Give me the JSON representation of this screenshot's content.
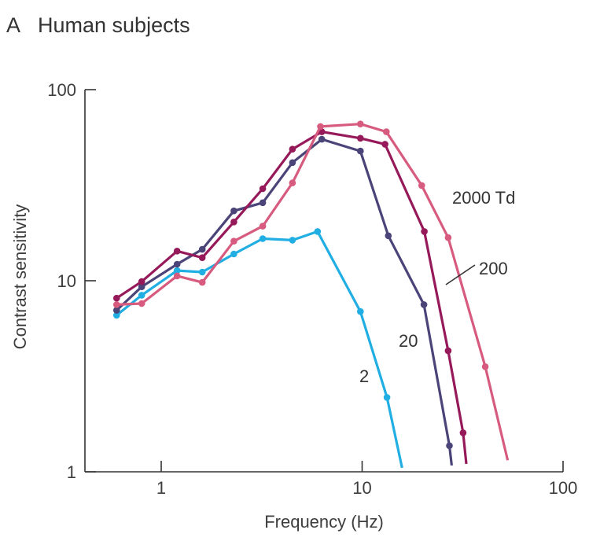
{
  "panel": {
    "letter": "A",
    "title": "Human subjects"
  },
  "chart_data": {
    "type": "line",
    "xlabel": "Frequency (Hz)",
    "ylabel": "Contrast sensitivity",
    "xscale": "log",
    "yscale": "log",
    "xlim": [
      0.5,
      100
    ],
    "ylim": [
      1,
      100
    ],
    "xticks": [
      1,
      10,
      100
    ],
    "xtick_labels": [
      "1",
      "10",
      "100"
    ],
    "yticks": [
      1,
      10,
      100
    ],
    "ytick_labels": [
      "1",
      "10",
      "100"
    ],
    "grid": false,
    "series": [
      {
        "name": "2",
        "label": "2",
        "color": "#21aee3",
        "x": [
          0.6,
          0.8,
          1.2,
          1.6,
          2.3,
          3.2,
          4.5,
          6.0,
          9.8,
          13.3
        ],
        "y": [
          6.6,
          8.4,
          11.3,
          11.1,
          13.8,
          16.6,
          16.3,
          18.1,
          6.9,
          2.45
        ],
        "tail": [
          15.8,
          1.05
        ]
      },
      {
        "name": "20",
        "label": "20",
        "color": "#4a4478",
        "x": [
          0.6,
          0.8,
          1.2,
          1.6,
          2.3,
          3.2,
          4.5,
          6.3,
          9.8,
          13.5,
          20.3,
          27.2
        ],
        "y": [
          7.0,
          9.3,
          12.2,
          14.6,
          23.2,
          25.6,
          41.5,
          55.0,
          47.7,
          17.2,
          7.5,
          1.37
        ],
        "tail": [
          27.9,
          1.08
        ]
      },
      {
        "name": "200",
        "label": "200",
        "color": "#96195a",
        "x": [
          0.6,
          0.8,
          1.2,
          1.6,
          2.3,
          3.2,
          4.5,
          6.3,
          9.8,
          13.0,
          20.4,
          26.8,
          31.8
        ],
        "y": [
          8.1,
          9.9,
          14.3,
          13.2,
          20.3,
          30.3,
          48.8,
          60.2,
          55.7,
          51.8,
          18.1,
          4.3,
          1.6
        ],
        "tail": [
          33.0,
          1.1
        ],
        "leader_line": true
      },
      {
        "name": "2000 Td",
        "label": "2000 Td",
        "color": "#d75b7f",
        "x": [
          0.6,
          0.8,
          1.2,
          1.6,
          2.3,
          3.2,
          4.5,
          6.2,
          9.8,
          13.2,
          19.8,
          26.8,
          41.0
        ],
        "y": [
          7.5,
          7.6,
          10.6,
          9.8,
          16.1,
          19.3,
          32.5,
          64.1,
          66.1,
          60.2,
          31.5,
          16.8,
          3.55
        ],
        "tail": [
          53.0,
          1.15
        ]
      }
    ]
  }
}
